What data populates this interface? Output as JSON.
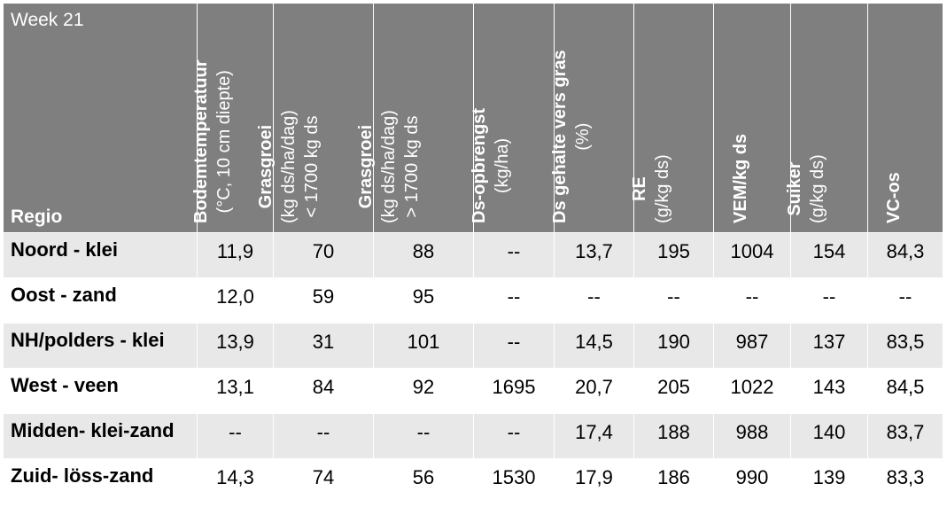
{
  "week": "Week 21",
  "regio_label": "Regio",
  "columns": [
    {
      "title": "Bodemtemperatuur",
      "sub": "(°C, 10 cm diepte)"
    },
    {
      "title": "Grasgroei",
      "sub": "(kg ds/ha/dag)",
      "sub2": "< 1700 kg ds"
    },
    {
      "title": "Grasgroei",
      "sub": "(kg ds/ha/dag)",
      "sub2": "> 1700 kg ds"
    },
    {
      "title": "Ds-opbrengst",
      "sub": "(kg/ha)"
    },
    {
      "title": "Ds gehalte vers gras",
      "sub": "(%)"
    },
    {
      "title": "RE",
      "sub": "(g/kg ds)"
    },
    {
      "title": "VEM/kg ds",
      "sub": ""
    },
    {
      "title": "Suiker",
      "sub": "(g/kg ds)"
    },
    {
      "title": "VC-os",
      "sub": ""
    }
  ],
  "rows": [
    {
      "region": "Noord - klei",
      "cells": [
        "11,9",
        "70",
        "88",
        "--",
        "13,7",
        "195",
        "1004",
        "154",
        "84,3"
      ]
    },
    {
      "region": "Oost - zand",
      "cells": [
        "12,0",
        "59",
        "95",
        "--",
        "--",
        "--",
        "--",
        "--",
        "--"
      ]
    },
    {
      "region": "NH/polders - klei",
      "cells": [
        "13,9",
        "31",
        "101",
        "--",
        "14,5",
        "190",
        "987",
        "137",
        "83,5"
      ]
    },
    {
      "region": "West - veen",
      "cells": [
        "13,1",
        "84",
        "92",
        "1695",
        "20,7",
        "205",
        "1022",
        "143",
        "84,5"
      ]
    },
    {
      "region": "Midden- klei-zand",
      "cells": [
        "--",
        "--",
        "--",
        "--",
        "17,4",
        "188",
        "988",
        "140",
        "83,7"
      ]
    },
    {
      "region": "Zuid- löss-zand",
      "cells": [
        "14,3",
        "74",
        "56",
        "1530",
        "17,9",
        "186",
        "990",
        "139",
        "83,3"
      ]
    }
  ]
}
